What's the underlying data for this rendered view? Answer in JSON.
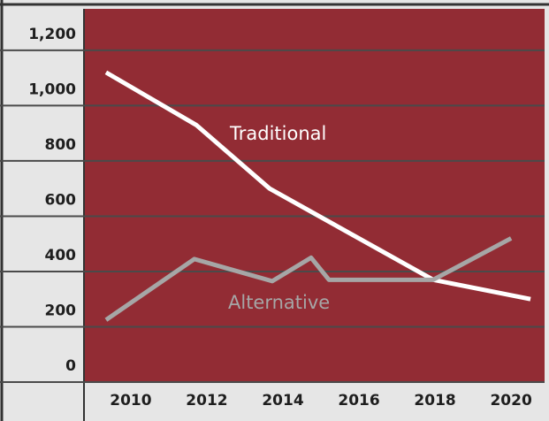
{
  "chart_data": {
    "type": "line",
    "series": [
      {
        "name": "Traditional",
        "color": "#ffffff",
        "x": [
          2009.35,
          2011.72,
          2013.65,
          2017.95,
          2020.51
        ],
        "values": [
          1120,
          930,
          700,
          370,
          300
        ]
      },
      {
        "name": "Alternative",
        "color": "#a6a6a6",
        "x": [
          2009.35,
          2011.67,
          2013.72,
          2014.74,
          2015.21,
          2017.95,
          2020.0
        ],
        "values": [
          225,
          445,
          365,
          450,
          370,
          370,
          520
        ]
      }
    ],
    "xlim": [
      2008.77,
      2020.88
    ],
    "xticks": [
      2010,
      2012,
      2014,
      2016,
      2018,
      2020
    ],
    "ylim": [
      0,
      1350
    ],
    "yticks": [
      0,
      200,
      400,
      600,
      800,
      {
        "value": 1000,
        "label": "1,000"
      },
      {
        "value": 1200,
        "label": "1,200"
      }
    ],
    "grid": true,
    "plot_color": "#922c34"
  }
}
